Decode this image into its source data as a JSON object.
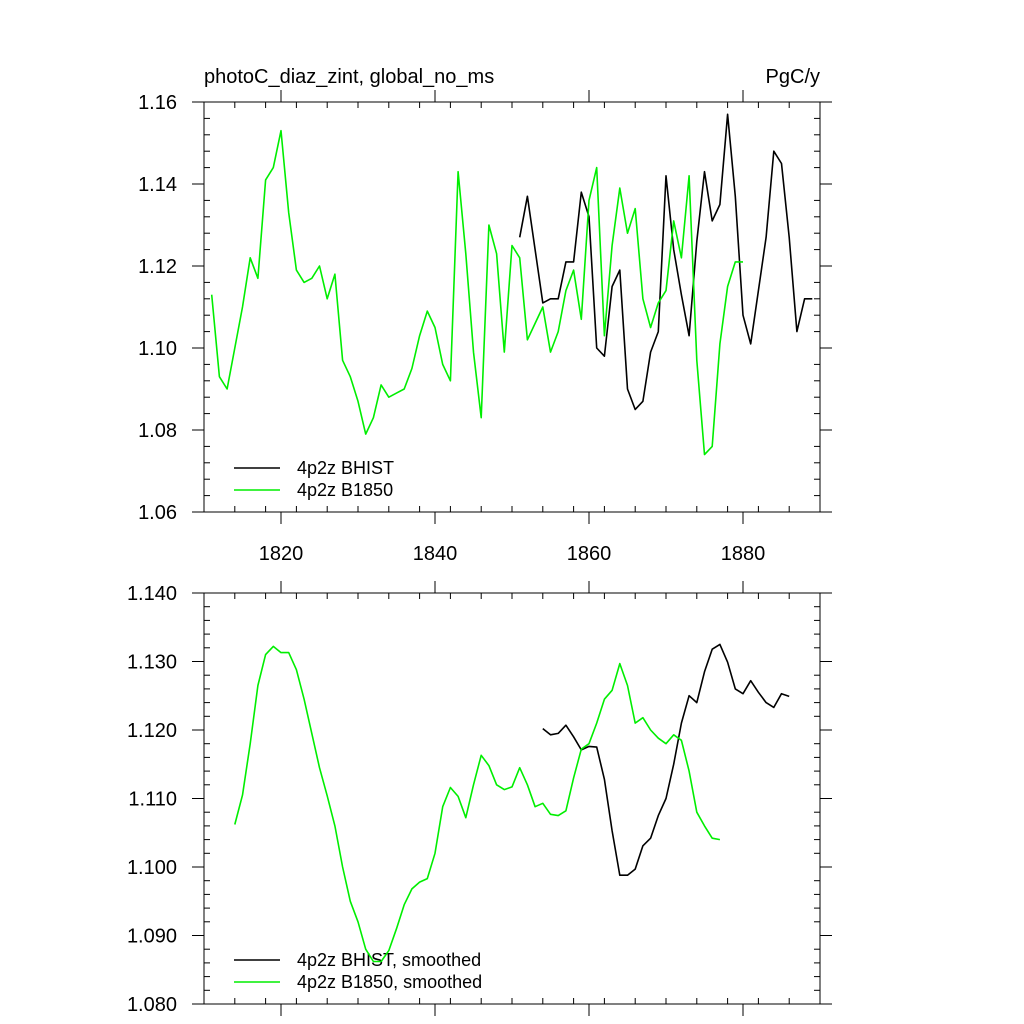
{
  "header": {
    "title": "photoC_diaz_zint, global_no_ms",
    "units": "PgC/y"
  },
  "colors": {
    "bhist": "#000000",
    "b1850": "#00ee00"
  },
  "chart_data": [
    {
      "type": "line",
      "title": "photoC_diaz_zint, global_no_ms",
      "units": "PgC/y",
      "xlim": [
        1810,
        1890
      ],
      "ylim": [
        1.06,
        1.16
      ],
      "x_ticks": [
        1820,
        1840,
        1860,
        1880
      ],
      "y_ticks": [
        1.06,
        1.08,
        1.1,
        1.12,
        1.14,
        1.16
      ],
      "y_tick_labels": [
        "1.06",
        "1.08",
        "1.10",
        "1.12",
        "1.14",
        "1.16"
      ],
      "legend": "bottom-left",
      "series": [
        {
          "name": "4p2z BHIST",
          "color": "#000000",
          "x": [
            1851,
            1852,
            1853,
            1854,
            1855,
            1856,
            1857,
            1858,
            1859,
            1860,
            1861,
            1862,
            1863,
            1864,
            1865,
            1866,
            1867,
            1868,
            1869,
            1870,
            1871,
            1872,
            1873,
            1874,
            1875,
            1876,
            1877,
            1878,
            1879,
            1880,
            1881,
            1882,
            1883,
            1884,
            1885,
            1886,
            1887,
            1888,
            1889
          ],
          "y": [
            1.127,
            1.137,
            1.124,
            1.111,
            1.112,
            1.112,
            1.121,
            1.121,
            1.138,
            1.132,
            1.1,
            1.098,
            1.115,
            1.119,
            1.09,
            1.085,
            1.087,
            1.099,
            1.104,
            1.142,
            1.124,
            1.113,
            1.103,
            1.126,
            1.143,
            1.131,
            1.135,
            1.157,
            1.137,
            1.108,
            1.101,
            1.114,
            1.127,
            1.148,
            1.145,
            1.127,
            1.104,
            1.112,
            1.112
          ]
        },
        {
          "name": "4p2z B1850",
          "color": "#00ee00",
          "x": [
            1811,
            1812,
            1813,
            1814,
            1815,
            1816,
            1817,
            1818,
            1819,
            1820,
            1821,
            1822,
            1823,
            1824,
            1825,
            1826,
            1827,
            1828,
            1829,
            1830,
            1831,
            1832,
            1833,
            1834,
            1835,
            1836,
            1837,
            1838,
            1839,
            1840,
            1841,
            1842,
            1843,
            1844,
            1845,
            1846,
            1847,
            1848,
            1849,
            1850,
            1851,
            1852,
            1853,
            1854,
            1855,
            1856,
            1857,
            1858,
            1859,
            1860,
            1861,
            1862,
            1863,
            1864,
            1865,
            1866,
            1867,
            1868,
            1869,
            1870,
            1871,
            1872,
            1873,
            1874,
            1875,
            1876,
            1877,
            1878,
            1879,
            1880
          ],
          "y": [
            1.113,
            1.093,
            1.09,
            1.1,
            1.11,
            1.122,
            1.117,
            1.141,
            1.144,
            1.153,
            1.133,
            1.119,
            1.116,
            1.117,
            1.12,
            1.112,
            1.118,
            1.097,
            1.093,
            1.087,
            1.079,
            1.083,
            1.091,
            1.088,
            1.089,
            1.09,
            1.095,
            1.103,
            1.109,
            1.105,
            1.096,
            1.092,
            1.143,
            1.123,
            1.099,
            1.083,
            1.13,
            1.123,
            1.099,
            1.125,
            1.122,
            1.102,
            1.106,
            1.11,
            1.099,
            1.104,
            1.114,
            1.119,
            1.107,
            1.136,
            1.144,
            1.103,
            1.125,
            1.139,
            1.128,
            1.134,
            1.112,
            1.105,
            1.111,
            1.114,
            1.131,
            1.122,
            1.142,
            1.097,
            1.074,
            1.076,
            1.101,
            1.115,
            1.121,
            1.121
          ]
        }
      ]
    },
    {
      "type": "line",
      "xlim": [
        1810,
        1890
      ],
      "ylim": [
        1.08,
        1.14
      ],
      "x_ticks": [
        1820,
        1840,
        1860,
        1880
      ],
      "y_ticks": [
        1.08,
        1.09,
        1.1,
        1.11,
        1.12,
        1.13,
        1.14
      ],
      "y_tick_labels": [
        "1.080",
        "1.090",
        "1.100",
        "1.110",
        "1.120",
        "1.130",
        "1.140"
      ],
      "legend": "bottom-left",
      "series": [
        {
          "name": "4p2z BHIST, smoothed",
          "color": "#000000",
          "x": [
            1854,
            1855,
            1856,
            1857,
            1858,
            1859,
            1860,
            1861,
            1862,
            1863,
            1864,
            1865,
            1866,
            1867,
            1868,
            1869,
            1870,
            1871,
            1872,
            1873,
            1874,
            1875,
            1876,
            1877,
            1878,
            1879,
            1880,
            1881,
            1882,
            1883,
            1884,
            1885,
            1886
          ],
          "y": [
            1.1202,
            1.1193,
            1.1195,
            1.1207,
            1.119,
            1.1171,
            1.1176,
            1.1175,
            1.1128,
            1.1053,
            1.0988,
            1.0988,
            1.0997,
            1.1031,
            1.1042,
            1.1075,
            1.11,
            1.115,
            1.121,
            1.125,
            1.124,
            1.1285,
            1.1318,
            1.1325,
            1.1299,
            1.126,
            1.1253,
            1.1272,
            1.1255,
            1.124,
            1.1233,
            1.1253,
            1.1249
          ]
        },
        {
          "name": "4p2z B1850, smoothed",
          "color": "#00ee00",
          "x": [
            1814,
            1815,
            1816,
            1817,
            1818,
            1819,
            1820,
            1821,
            1822,
            1823,
            1824,
            1825,
            1826,
            1827,
            1828,
            1829,
            1830,
            1831,
            1832,
            1833,
            1834,
            1835,
            1836,
            1837,
            1838,
            1839,
            1840,
            1841,
            1842,
            1843,
            1844,
            1845,
            1846,
            1847,
            1848,
            1849,
            1850,
            1851,
            1852,
            1853,
            1854,
            1855,
            1856,
            1857,
            1858,
            1859,
            1860,
            1861,
            1862,
            1863,
            1864,
            1865,
            1866,
            1867,
            1868,
            1869,
            1870,
            1871,
            1872,
            1873,
            1874,
            1875,
            1876,
            1877
          ],
          "y": [
            1.1062,
            1.1105,
            1.118,
            1.1265,
            1.131,
            1.1322,
            1.1313,
            1.1313,
            1.1288,
            1.1245,
            1.1195,
            1.1145,
            1.1104,
            1.106,
            1.1,
            1.095,
            1.092,
            1.088,
            1.0862,
            1.0862,
            1.0878,
            1.091,
            1.0945,
            1.0968,
            1.0978,
            1.0983,
            1.102,
            1.1088,
            1.1116,
            1.1103,
            1.1072,
            1.112,
            1.1163,
            1.1148,
            1.112,
            1.1113,
            1.1117,
            1.1145,
            1.112,
            1.1088,
            1.1093,
            1.1077,
            1.1075,
            1.1082,
            1.113,
            1.1172,
            1.118,
            1.121,
            1.1245,
            1.1258,
            1.1297,
            1.1265,
            1.121,
            1.1218,
            1.12,
            1.1188,
            1.118,
            1.1193,
            1.1185,
            1.114,
            1.108,
            1.106,
            1.1042,
            1.104
          ]
        }
      ]
    }
  ]
}
